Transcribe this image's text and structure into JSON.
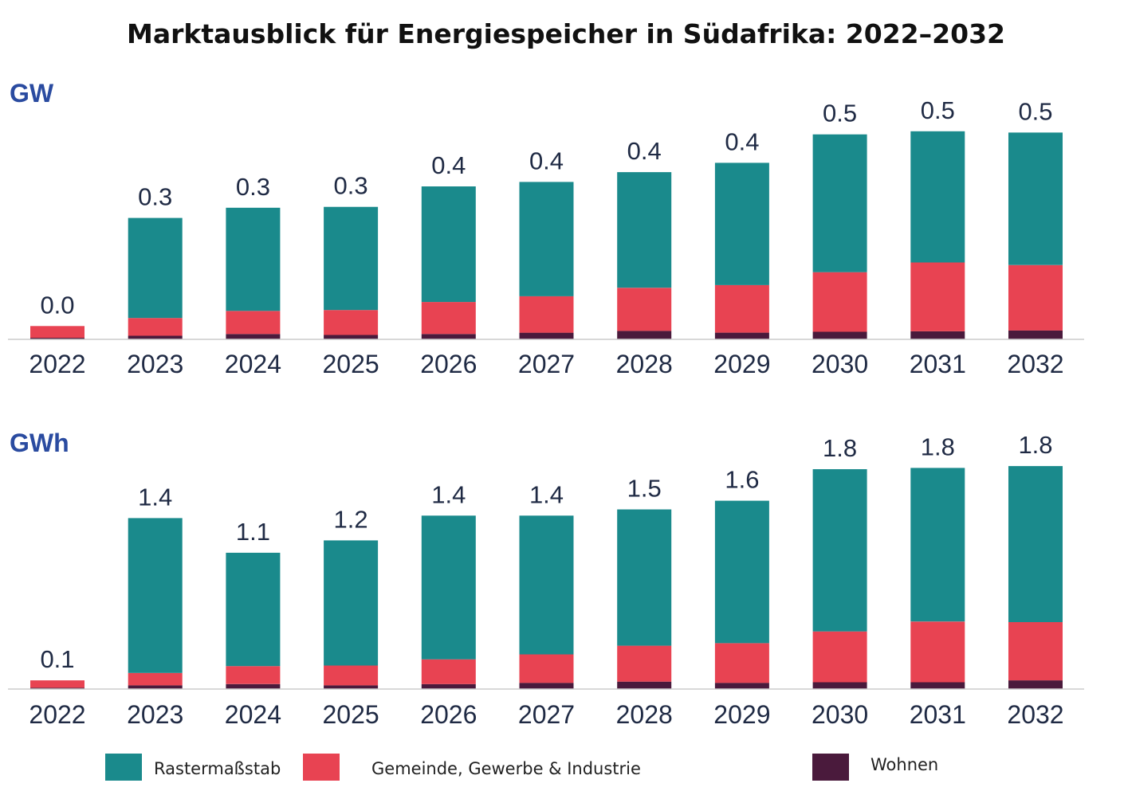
{
  "chart_data": {
    "type": "bar",
    "stacked": true,
    "title": "Marktausblick für Energiespeicher in Südafrika: 2022–2032",
    "legend": [
      {
        "key": "raster",
        "label": "Rastermaßstab",
        "color": "#1a8a8c"
      },
      {
        "key": "gewerbe",
        "label": "Gemeinde, Gewerbe & Industrie",
        "color": "#e84352"
      },
      {
        "key": "wohnen",
        "label": "Wohnen",
        "color": "#4a1a3c"
      }
    ],
    "panels": [
      {
        "unit": "GW",
        "categories": [
          "2022",
          "2023",
          "2024",
          "2025",
          "2026",
          "2027",
          "2028",
          "2029",
          "2030",
          "2031",
          "2032"
        ],
        "totals_labels": [
          "0.0",
          "0.3",
          "0.3",
          "0.3",
          "0.4",
          "0.4",
          "0.4",
          "0.4",
          "0.5",
          "0.5",
          "0.5"
        ],
        "series": [
          {
            "name": "Wohnen",
            "key": "wohnen",
            "values": [
              0.0035,
              0.008,
              0.012,
              0.01,
              0.012,
              0.015,
              0.019,
              0.015,
              0.017,
              0.018,
              0.02
            ]
          },
          {
            "name": "Gemeinde, Gewerbe & Industrie",
            "key": "gewerbe",
            "values": [
              0.0265,
              0.04,
              0.052,
              0.056,
              0.072,
              0.082,
              0.097,
              0.107,
              0.134,
              0.155,
              0.147
            ]
          },
          {
            "name": "Rastermaßstab",
            "key": "raster",
            "values": [
              0.0,
              0.225,
              0.232,
              0.232,
              0.26,
              0.257,
              0.26,
              0.275,
              0.31,
              0.295,
              0.298
            ]
          }
        ],
        "ylim": [
          0,
          0.55
        ]
      },
      {
        "unit": "GWh",
        "categories": [
          "2022",
          "2023",
          "2024",
          "2025",
          "2026",
          "2027",
          "2028",
          "2029",
          "2030",
          "2031",
          "2032"
        ],
        "totals_labels": [
          "0.1",
          "1.4",
          "1.1",
          "1.2",
          "1.4",
          "1.4",
          "1.5",
          "1.6",
          "1.8",
          "1.8",
          "1.8"
        ],
        "series": [
          {
            "name": "Wohnen",
            "key": "wohnen",
            "values": [
              0.01,
              0.03,
              0.04,
              0.03,
              0.04,
              0.05,
              0.06,
              0.05,
              0.055,
              0.055,
              0.07
            ]
          },
          {
            "name": "Gemeinde, Gewerbe & Industrie",
            "key": "gewerbe",
            "values": [
              0.06,
              0.1,
              0.145,
              0.16,
              0.2,
              0.23,
              0.29,
              0.32,
              0.41,
              0.49,
              0.47
            ]
          },
          {
            "name": "Rastermaßstab",
            "key": "raster",
            "values": [
              0.0,
              1.25,
              0.915,
              1.01,
              1.16,
              1.12,
              1.1,
              1.15,
              1.31,
              1.24,
              1.26
            ]
          }
        ],
        "ylim": [
          0,
          2.0
        ]
      }
    ]
  }
}
